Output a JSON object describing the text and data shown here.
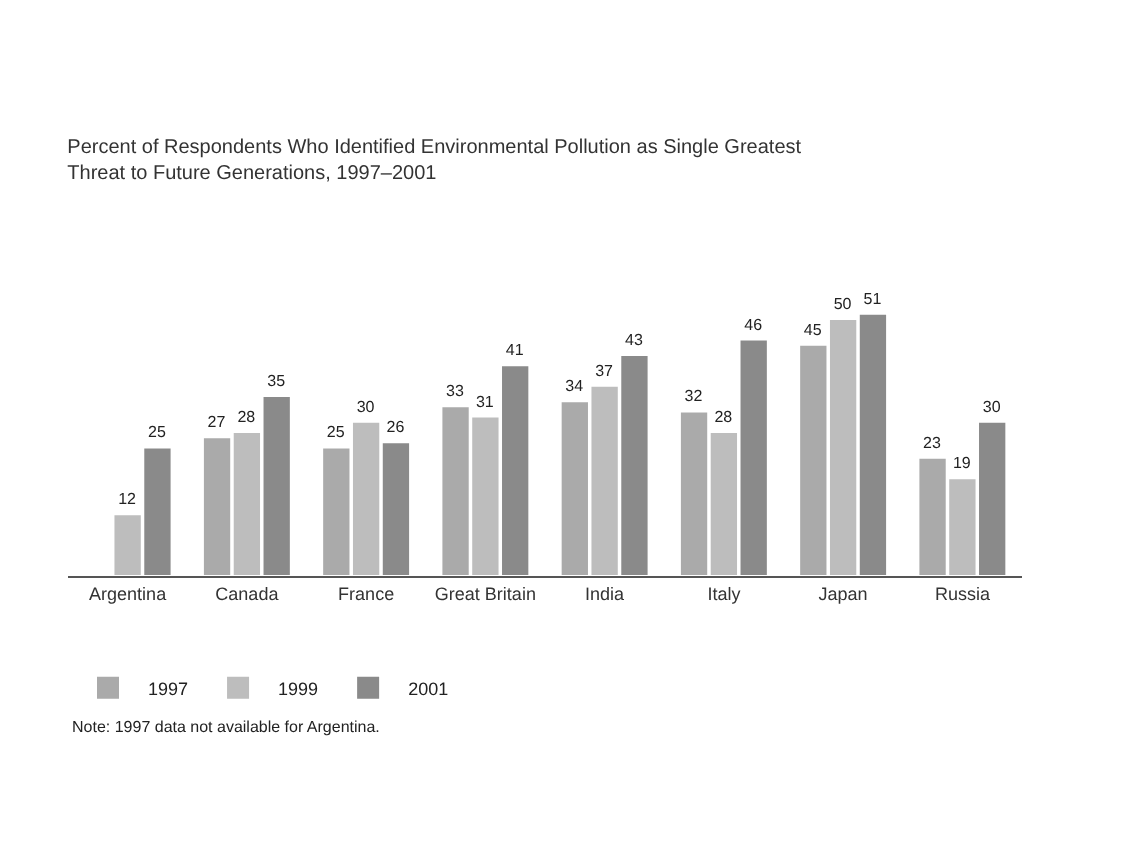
{
  "chart_data": {
    "type": "bar",
    "title": "Percent of Respondents Who Identified Environmental Pollution as Single Greatest\nThreat to Future Generations, 1997–2001",
    "categories": [
      "Argentina",
      "Canada",
      "France",
      "Great Britain",
      "India",
      "Italy",
      "Japan",
      "Russia"
    ],
    "series": [
      {
        "name": "1997",
        "color": "#aaaaaa",
        "values": [
          null,
          27,
          25,
          33,
          34,
          32,
          45,
          23
        ]
      },
      {
        "name": "1999",
        "color": "#bdbdbd",
        "values": [
          12,
          28,
          30,
          31,
          37,
          28,
          50,
          19
        ]
      },
      {
        "name": "2001",
        "color": "#8a8a8a",
        "values": [
          25,
          35,
          26,
          41,
          43,
          46,
          51,
          30
        ]
      }
    ],
    "data_labels": true,
    "legend": "bottom left",
    "annotations": [
      "Note: 1997 data not available for Argentina."
    ]
  }
}
